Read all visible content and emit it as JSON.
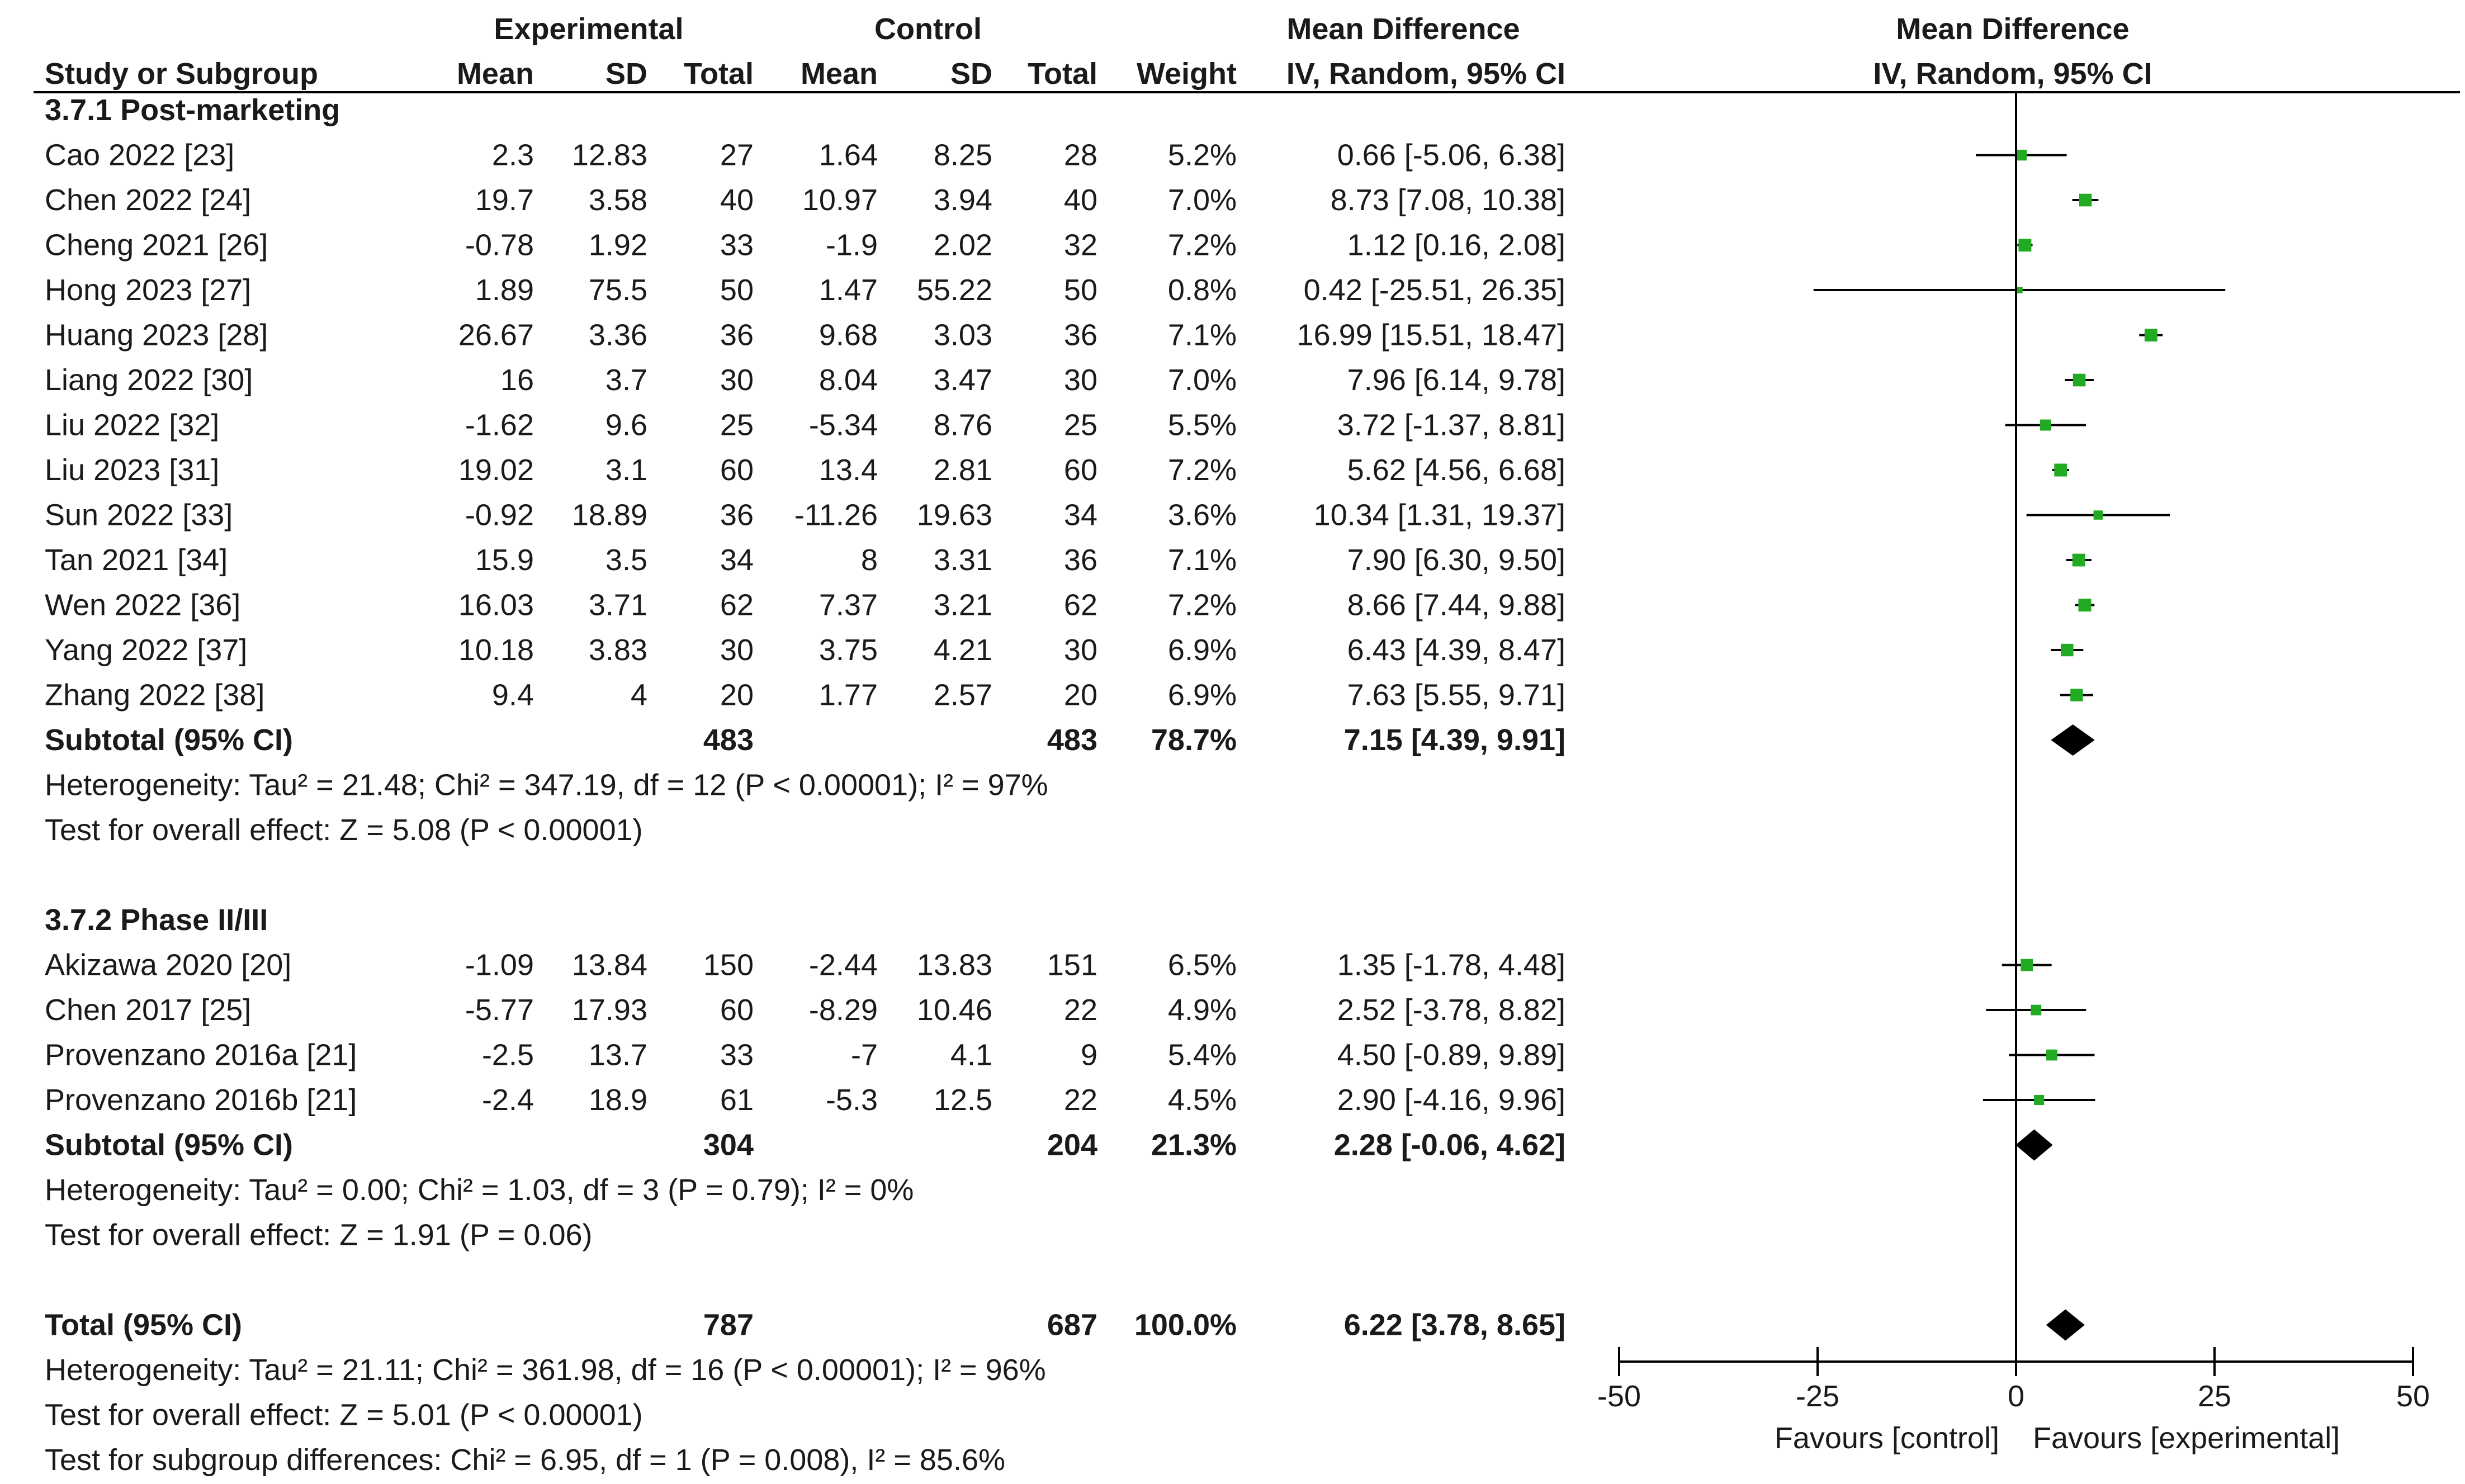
{
  "headers": {
    "group_experimental": "Experimental",
    "group_control": "Control",
    "group_md": "Mean Difference",
    "plot_title": "Mean Difference",
    "plot_method": "IV, Random, 95% CI",
    "col_study": "Study or Subgroup",
    "col_exp_mean": "Mean",
    "col_exp_sd": "SD",
    "col_exp_total": "Total",
    "col_ctl_mean": "Mean",
    "col_ctl_sd": "SD",
    "col_ctl_total": "Total",
    "col_weight": "Weight",
    "col_md": "IV, Random, 95% CI"
  },
  "rows": [
    {
      "kind": "header",
      "label": "3.7.1 Post-marketing"
    },
    {
      "kind": "study",
      "label": "Cao 2022 [23]",
      "exp_mean": "2.3",
      "exp_sd": "12.83",
      "exp_total": "27",
      "ctl_mean": "1.64",
      "ctl_sd": "8.25",
      "ctl_total": "28",
      "weight": "5.2%",
      "ci_text": "0.66 [-5.06, 6.38]",
      "md": 0.66,
      "lo": -5.06,
      "hi": 6.38
    },
    {
      "kind": "study",
      "label": "Chen 2022 [24]",
      "exp_mean": "19.7",
      "exp_sd": "3.58",
      "exp_total": "40",
      "ctl_mean": "10.97",
      "ctl_sd": "3.94",
      "ctl_total": "40",
      "weight": "7.0%",
      "ci_text": "8.73 [7.08, 10.38]",
      "md": 8.73,
      "lo": 7.08,
      "hi": 10.38
    },
    {
      "kind": "study",
      "label": "Cheng 2021 [26]",
      "exp_mean": "-0.78",
      "exp_sd": "1.92",
      "exp_total": "33",
      "ctl_mean": "-1.9",
      "ctl_sd": "2.02",
      "ctl_total": "32",
      "weight": "7.2%",
      "ci_text": "1.12 [0.16, 2.08]",
      "md": 1.12,
      "lo": 0.16,
      "hi": 2.08
    },
    {
      "kind": "study",
      "label": "Hong 2023 [27]",
      "exp_mean": "1.89",
      "exp_sd": "75.5",
      "exp_total": "50",
      "ctl_mean": "1.47",
      "ctl_sd": "55.22",
      "ctl_total": "50",
      "weight": "0.8%",
      "ci_text": "0.42 [-25.51, 26.35]",
      "md": 0.42,
      "lo": -25.51,
      "hi": 26.35
    },
    {
      "kind": "study",
      "label": "Huang 2023 [28]",
      "exp_mean": "26.67",
      "exp_sd": "3.36",
      "exp_total": "36",
      "ctl_mean": "9.68",
      "ctl_sd": "3.03",
      "ctl_total": "36",
      "weight": "7.1%",
      "ci_text": "16.99 [15.51, 18.47]",
      "md": 16.99,
      "lo": 15.51,
      "hi": 18.47
    },
    {
      "kind": "study",
      "label": "Liang 2022 [30]",
      "exp_mean": "16",
      "exp_sd": "3.7",
      "exp_total": "30",
      "ctl_mean": "8.04",
      "ctl_sd": "3.47",
      "ctl_total": "30",
      "weight": "7.0%",
      "ci_text": "7.96 [6.14, 9.78]",
      "md": 7.96,
      "lo": 6.14,
      "hi": 9.78
    },
    {
      "kind": "study",
      "label": "Liu 2022 [32]",
      "exp_mean": "-1.62",
      "exp_sd": "9.6",
      "exp_total": "25",
      "ctl_mean": "-5.34",
      "ctl_sd": "8.76",
      "ctl_total": "25",
      "weight": "5.5%",
      "ci_text": "3.72 [-1.37, 8.81]",
      "md": 3.72,
      "lo": -1.37,
      "hi": 8.81
    },
    {
      "kind": "study",
      "label": "Liu 2023 [31]",
      "exp_mean": "19.02",
      "exp_sd": "3.1",
      "exp_total": "60",
      "ctl_mean": "13.4",
      "ctl_sd": "2.81",
      "ctl_total": "60",
      "weight": "7.2%",
      "ci_text": "5.62 [4.56, 6.68]",
      "md": 5.62,
      "lo": 4.56,
      "hi": 6.68
    },
    {
      "kind": "study",
      "label": "Sun 2022 [33]",
      "exp_mean": "-0.92",
      "exp_sd": "18.89",
      "exp_total": "36",
      "ctl_mean": "-11.26",
      "ctl_sd": "19.63",
      "ctl_total": "34",
      "weight": "3.6%",
      "ci_text": "10.34 [1.31, 19.37]",
      "md": 10.34,
      "lo": 1.31,
      "hi": 19.37
    },
    {
      "kind": "study",
      "label": "Tan 2021 [34]",
      "exp_mean": "15.9",
      "exp_sd": "3.5",
      "exp_total": "34",
      "ctl_mean": "8",
      "ctl_sd": "3.31",
      "ctl_total": "36",
      "weight": "7.1%",
      "ci_text": "7.90 [6.30, 9.50]",
      "md": 7.9,
      "lo": 6.3,
      "hi": 9.5
    },
    {
      "kind": "study",
      "label": "Wen 2022 [36]",
      "exp_mean": "16.03",
      "exp_sd": "3.71",
      "exp_total": "62",
      "ctl_mean": "7.37",
      "ctl_sd": "3.21",
      "ctl_total": "62",
      "weight": "7.2%",
      "ci_text": "8.66 [7.44, 9.88]",
      "md": 8.66,
      "lo": 7.44,
      "hi": 9.88
    },
    {
      "kind": "study",
      "label": "Yang 2022 [37]",
      "exp_mean": "10.18",
      "exp_sd": "3.83",
      "exp_total": "30",
      "ctl_mean": "3.75",
      "ctl_sd": "4.21",
      "ctl_total": "30",
      "weight": "6.9%",
      "ci_text": "6.43 [4.39, 8.47]",
      "md": 6.43,
      "lo": 4.39,
      "hi": 8.47
    },
    {
      "kind": "study",
      "label": "Zhang 2022 [38]",
      "exp_mean": "9.4",
      "exp_sd": "4",
      "exp_total": "20",
      "ctl_mean": "1.77",
      "ctl_sd": "2.57",
      "ctl_total": "20",
      "weight": "6.9%",
      "ci_text": "7.63 [5.55, 9.71]",
      "md": 7.63,
      "lo": 5.55,
      "hi": 9.71
    },
    {
      "kind": "subtotal",
      "label": "Subtotal (95% CI)",
      "exp_total": "483",
      "ctl_total": "483",
      "weight": "78.7%",
      "ci_text": "7.15 [4.39, 9.91]",
      "md": 7.15,
      "lo": 4.39,
      "hi": 9.91
    },
    {
      "kind": "note",
      "label": "Heterogeneity: Tau² = 21.48; Chi² = 347.19, df = 12 (P < 0.00001); I² = 97%"
    },
    {
      "kind": "note",
      "label": "Test for overall effect: Z = 5.08 (P < 0.00001)"
    },
    {
      "kind": "blank"
    },
    {
      "kind": "header",
      "label": "3.7.2 Phase II/III"
    },
    {
      "kind": "study",
      "label": "Akizawa 2020 [20]",
      "exp_mean": "-1.09",
      "exp_sd": "13.84",
      "exp_total": "150",
      "ctl_mean": "-2.44",
      "ctl_sd": "13.83",
      "ctl_total": "151",
      "weight": "6.5%",
      "ci_text": "1.35 [-1.78, 4.48]",
      "md": 1.35,
      "lo": -1.78,
      "hi": 4.48
    },
    {
      "kind": "study",
      "label": "Chen 2017 [25]",
      "exp_mean": "-5.77",
      "exp_sd": "17.93",
      "exp_total": "60",
      "ctl_mean": "-8.29",
      "ctl_sd": "10.46",
      "ctl_total": "22",
      "weight": "4.9%",
      "ci_text": "2.52 [-3.78, 8.82]",
      "md": 2.52,
      "lo": -3.78,
      "hi": 8.82
    },
    {
      "kind": "study",
      "label": "Provenzano 2016a [21]",
      "exp_mean": "-2.5",
      "exp_sd": "13.7",
      "exp_total": "33",
      "ctl_mean": "-7",
      "ctl_sd": "4.1",
      "ctl_total": "9",
      "weight": "5.4%",
      "ci_text": "4.50 [-0.89, 9.89]",
      "md": 4.5,
      "lo": -0.89,
      "hi": 9.89
    },
    {
      "kind": "study",
      "label": "Provenzano 2016b [21]",
      "exp_mean": "-2.4",
      "exp_sd": "18.9",
      "exp_total": "61",
      "ctl_mean": "-5.3",
      "ctl_sd": "12.5",
      "ctl_total": "22",
      "weight": "4.5%",
      "ci_text": "2.90 [-4.16, 9.96]",
      "md": 2.9,
      "lo": -4.16,
      "hi": 9.96
    },
    {
      "kind": "subtotal",
      "label": "Subtotal (95% CI)",
      "exp_total": "304",
      "ctl_total": "204",
      "weight": "21.3%",
      "ci_text": "2.28 [-0.06, 4.62]",
      "md": 2.28,
      "lo": -0.06,
      "hi": 4.62
    },
    {
      "kind": "note",
      "label": "Heterogeneity: Tau² = 0.00; Chi² = 1.03, df = 3 (P = 0.79); I² = 0%"
    },
    {
      "kind": "note",
      "label": "Test for overall effect: Z = 1.91 (P = 0.06)"
    },
    {
      "kind": "blank"
    },
    {
      "kind": "subtotal",
      "label": "Total (95% CI)",
      "exp_total": "787",
      "ctl_total": "687",
      "weight": "100.0%",
      "ci_text": "6.22 [3.78, 8.65]",
      "md": 6.22,
      "lo": 3.78,
      "hi": 8.65
    },
    {
      "kind": "note",
      "label": "Heterogeneity: Tau² = 21.11; Chi² = 361.98, df = 16 (P < 0.00001); I² = 96%"
    },
    {
      "kind": "note",
      "label": "Test for overall effect: Z = 5.01 (P < 0.00001)"
    },
    {
      "kind": "note",
      "label": "Test for subgroup differences: Chi² = 6.95, df = 1 (P = 0.008), I² = 85.6%"
    }
  ],
  "chart_data": {
    "type": "forest",
    "title": "Mean Difference",
    "subtitle": "IV, Random, 95% CI",
    "xlim": [
      -50,
      50
    ],
    "xticks": [
      -50,
      -25,
      0,
      25,
      50
    ],
    "xtick_labels": [
      "-50",
      "-25",
      "0",
      "25",
      "50"
    ],
    "xlabel_left": "Favours [control]",
    "xlabel_right": "Favours [experimental]",
    "point_color": "#22aa22",
    "diamond_color": "#000000",
    "studies": [
      {
        "name": "Cao 2022 [23]",
        "md": 0.66,
        "lo": -5.06,
        "hi": 6.38,
        "weight": 5.2
      },
      {
        "name": "Chen 2022 [24]",
        "md": 8.73,
        "lo": 7.08,
        "hi": 10.38,
        "weight": 7.0
      },
      {
        "name": "Cheng 2021 [26]",
        "md": 1.12,
        "lo": 0.16,
        "hi": 2.08,
        "weight": 7.2
      },
      {
        "name": "Hong 2023 [27]",
        "md": 0.42,
        "lo": -25.51,
        "hi": 26.35,
        "weight": 0.8
      },
      {
        "name": "Huang 2023 [28]",
        "md": 16.99,
        "lo": 15.51,
        "hi": 18.47,
        "weight": 7.1
      },
      {
        "name": "Liang 2022 [30]",
        "md": 7.96,
        "lo": 6.14,
        "hi": 9.78,
        "weight": 7.0
      },
      {
        "name": "Liu 2022 [32]",
        "md": 3.72,
        "lo": -1.37,
        "hi": 8.81,
        "weight": 5.5
      },
      {
        "name": "Liu 2023 [31]",
        "md": 5.62,
        "lo": 4.56,
        "hi": 6.68,
        "weight": 7.2
      },
      {
        "name": "Sun 2022 [33]",
        "md": 10.34,
        "lo": 1.31,
        "hi": 19.37,
        "weight": 3.6
      },
      {
        "name": "Tan 2021 [34]",
        "md": 7.9,
        "lo": 6.3,
        "hi": 9.5,
        "weight": 7.1
      },
      {
        "name": "Wen 2022 [36]",
        "md": 8.66,
        "lo": 7.44,
        "hi": 9.88,
        "weight": 7.2
      },
      {
        "name": "Yang 2022 [37]",
        "md": 6.43,
        "lo": 4.39,
        "hi": 8.47,
        "weight": 6.9
      },
      {
        "name": "Zhang 2022 [38]",
        "md": 7.63,
        "lo": 5.55,
        "hi": 9.71,
        "weight": 6.9
      },
      {
        "name": "Akizawa 2020 [20]",
        "md": 1.35,
        "lo": -1.78,
        "hi": 4.48,
        "weight": 6.5
      },
      {
        "name": "Chen 2017 [25]",
        "md": 2.52,
        "lo": -3.78,
        "hi": 8.82,
        "weight": 4.9
      },
      {
        "name": "Provenzano 2016a [21]",
        "md": 4.5,
        "lo": -0.89,
        "hi": 9.89,
        "weight": 5.4
      },
      {
        "name": "Provenzano 2016b [21]",
        "md": 2.9,
        "lo": -4.16,
        "hi": 9.96,
        "weight": 4.5
      }
    ],
    "pooled": [
      {
        "name": "Subtotal 3.7.1 Post-marketing",
        "md": 7.15,
        "lo": 4.39,
        "hi": 9.91
      },
      {
        "name": "Subtotal 3.7.2 Phase II/III",
        "md": 2.28,
        "lo": -0.06,
        "hi": 4.62
      },
      {
        "name": "Total",
        "md": 6.22,
        "lo": 3.78,
        "hi": 8.65
      }
    ]
  }
}
